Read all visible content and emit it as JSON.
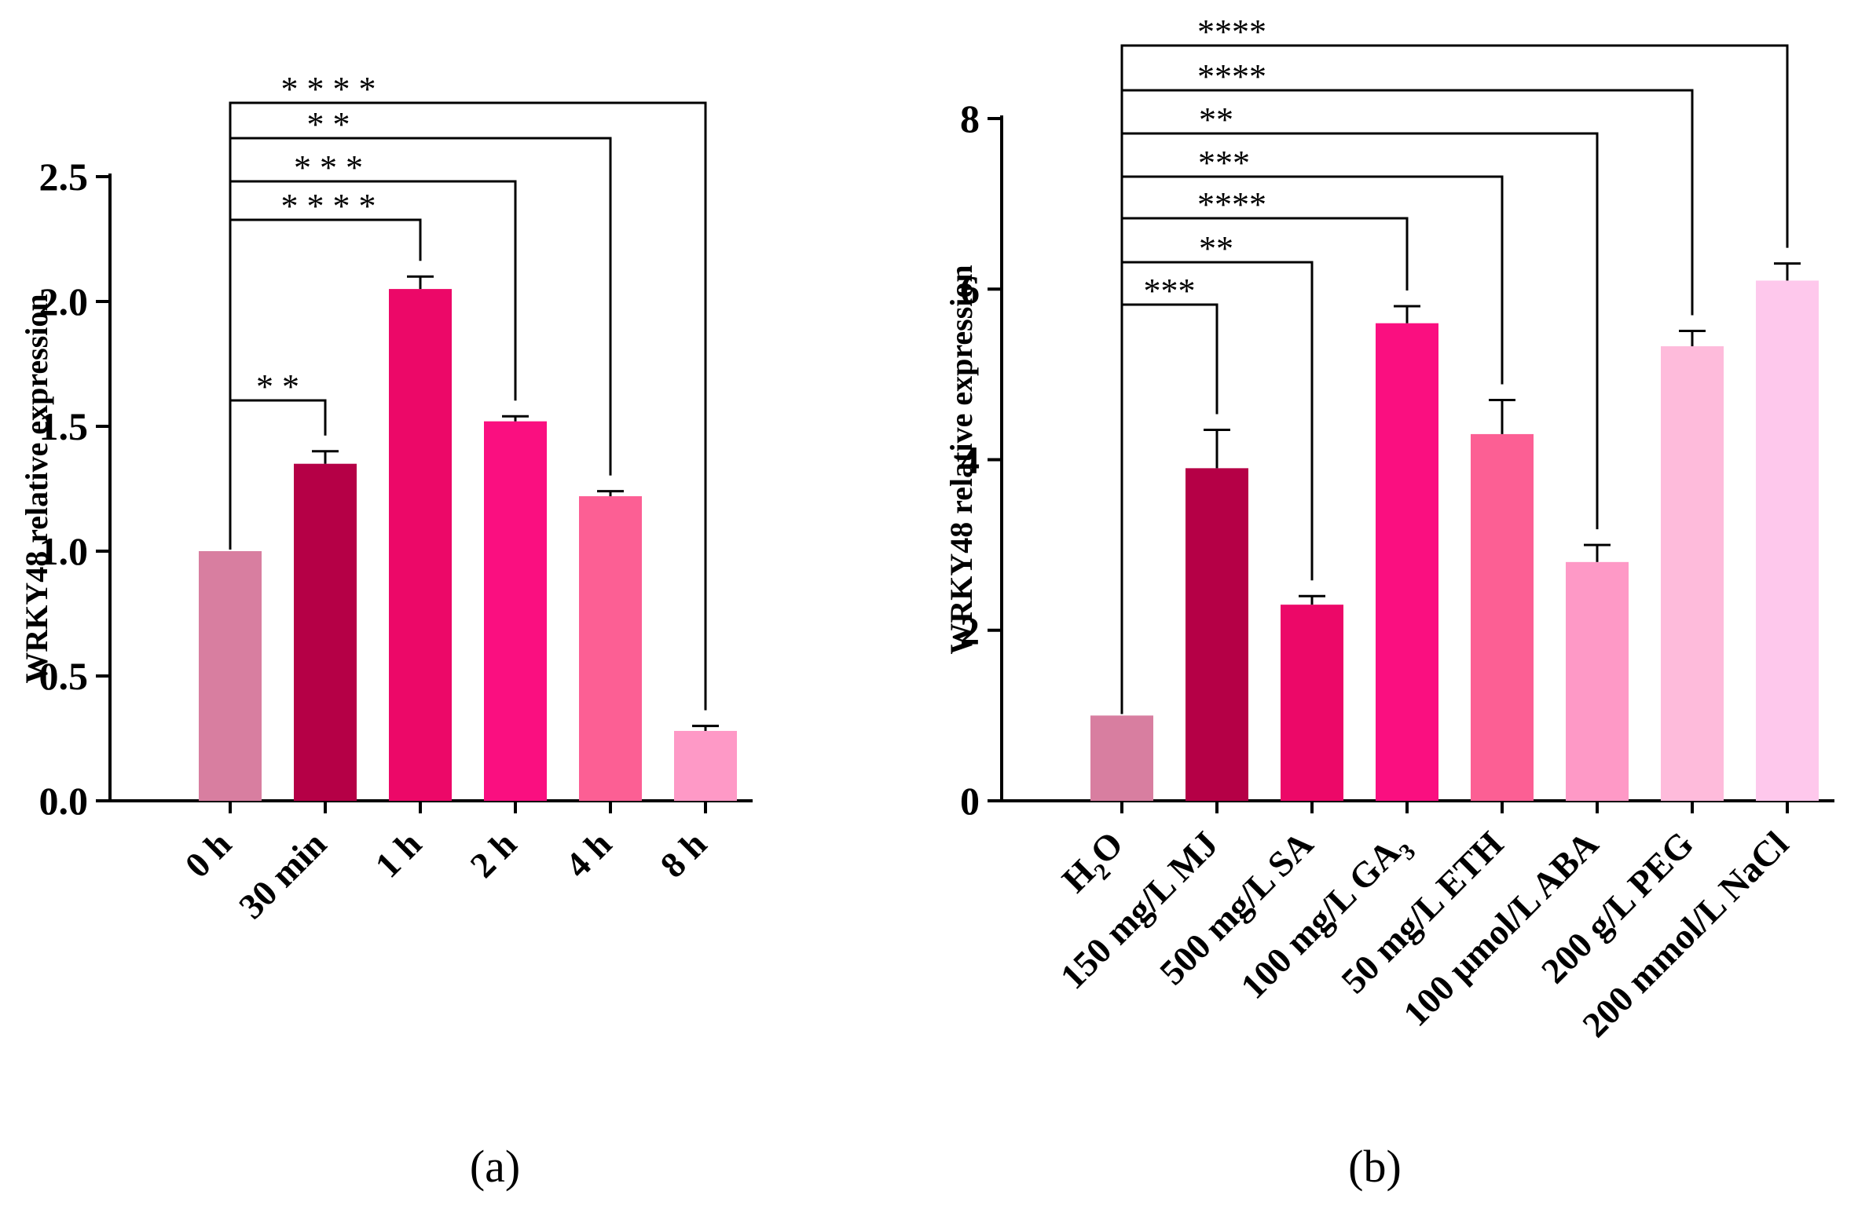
{
  "chart_data": [
    {
      "type": "bar",
      "panel_label": "(a)",
      "ylabel": "WRKY48 relative expression",
      "xlabel": "",
      "ylim": [
        0,
        2.5
      ],
      "yticks": [
        "0.0",
        "0.5",
        "1.0",
        "1.5",
        "2.0",
        "2.5"
      ],
      "categories": [
        "0 h",
        "30 min",
        "1 h",
        "2 h",
        "4 h",
        "8 h"
      ],
      "values": [
        1.0,
        1.35,
        2.05,
        1.52,
        1.22,
        0.28
      ],
      "errors": [
        0.0,
        0.05,
        0.05,
        0.02,
        0.02,
        0.02
      ],
      "colors": [
        "#d87ea0",
        "#b50046",
        "#ec0868",
        "#fa0f80",
        "#fc5f94",
        "#fe99c6"
      ],
      "significance": [
        {
          "target": 1,
          "label": "* *"
        },
        {
          "target": 2,
          "label": "* * * *"
        },
        {
          "target": 3,
          "label": "* * *"
        },
        {
          "target": 4,
          "label": "* *"
        },
        {
          "target": 5,
          "label": "* * * *"
        }
      ]
    },
    {
      "type": "bar",
      "panel_label": "(b)",
      "ylabel": "WRKY48 relative expression",
      "xlabel": "",
      "ylim": [
        0,
        8
      ],
      "yticks": [
        "0",
        "2",
        "4",
        "6",
        "8"
      ],
      "categories": [
        {
          "base": "H",
          "sub": "2",
          "tail": "O"
        },
        {
          "base": "150 mg/L MJ",
          "sub": "",
          "tail": ""
        },
        {
          "base": "500 mg/L SA",
          "sub": "",
          "tail": ""
        },
        {
          "base": "100 mg/L GA",
          "sub": "3",
          "tail": ""
        },
        {
          "base": "50 mg/L ETH",
          "sub": "",
          "tail": ""
        },
        {
          "base": "100 μmol/L ABA",
          "sub": "",
          "tail": ""
        },
        {
          "base": "200 g/L PEG",
          "sub": "",
          "tail": ""
        },
        {
          "base": "200 mmol/L NaCl",
          "sub": "",
          "tail": ""
        }
      ],
      "values": [
        1.0,
        3.9,
        2.3,
        5.6,
        4.3,
        2.8,
        5.33,
        6.1
      ],
      "errors": [
        0.0,
        0.45,
        0.1,
        0.2,
        0.4,
        0.2,
        0.18,
        0.2
      ],
      "colors": [
        "#d87ea0",
        "#b50046",
        "#ec0868",
        "#fa0f80",
        "#fc5f94",
        "#fe99c6",
        "#febbdb",
        "#fec8ec"
      ],
      "significance": [
        {
          "target": 1,
          "label": "***"
        },
        {
          "target": 2,
          "label": "**"
        },
        {
          "target": 3,
          "label": "****"
        },
        {
          "target": 4,
          "label": "***"
        },
        {
          "target": 5,
          "label": "**"
        },
        {
          "target": 6,
          "label": "****"
        },
        {
          "target": 7,
          "label": "****"
        }
      ]
    }
  ]
}
